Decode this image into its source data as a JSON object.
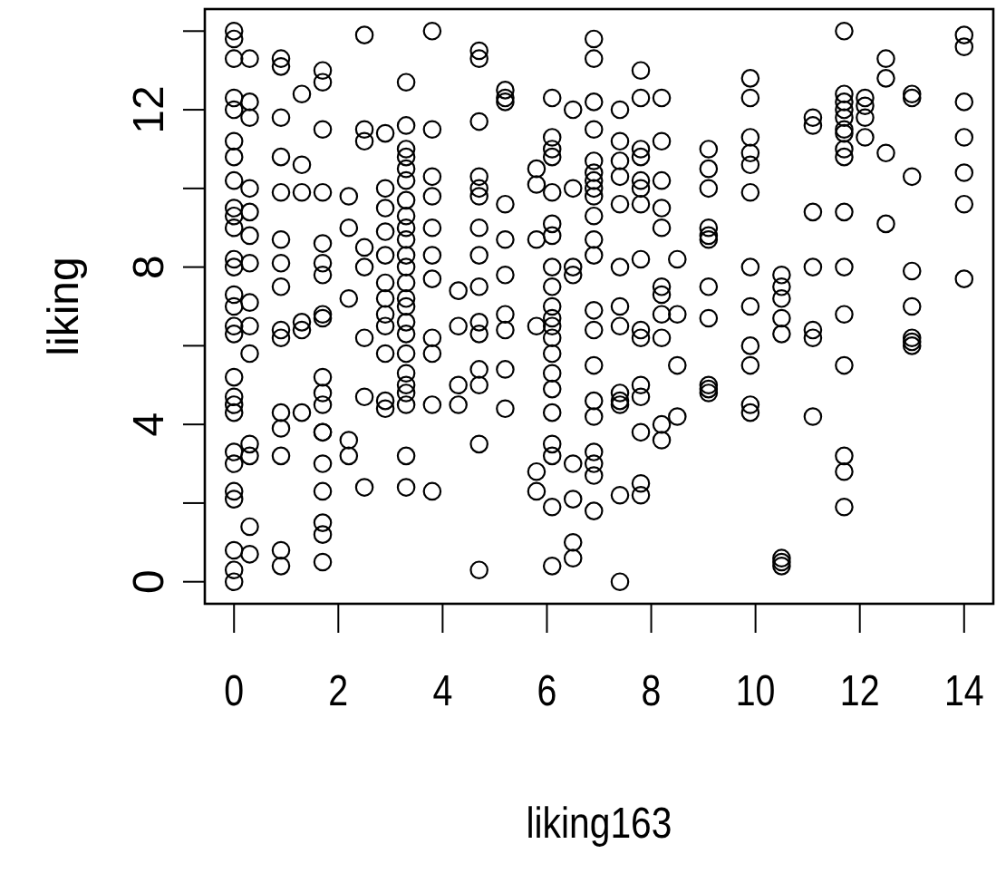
{
  "chart_data": {
    "type": "scatter",
    "xlabel": "liking163",
    "ylabel": "liking",
    "marker": "circle",
    "grid": false,
    "xlim": [
      -0.56,
      14.56
    ],
    "ylim": [
      -0.56,
      14.56
    ],
    "xticks": [
      0,
      2,
      4,
      6,
      8,
      10,
      12,
      14
    ],
    "yticks": [
      0,
      {
        "value": 2,
        "label": null
      },
      4,
      {
        "value": 6,
        "label": null
      },
      8,
      {
        "value": 10,
        "label": null
      },
      12,
      {
        "value": 14,
        "label": null
      }
    ],
    "series": [
      {
        "color": "#000000",
        "x": [
          0,
          0,
          0,
          0,
          0,
          0,
          0,
          0,
          0,
          0,
          0,
          0,
          0,
          0,
          0,
          0,
          0,
          0,
          0,
          0,
          0,
          0,
          0,
          0,
          0,
          0,
          0,
          0,
          0.3,
          0.3,
          0.3,
          0.3,
          0.3,
          0.3,
          0.3,
          0.3,
          0.3,
          0.3,
          0.3,
          0.3,
          0.3,
          0.3,
          0.9,
          0.9,
          0.9,
          0.9,
          0.9,
          0.9,
          0.9,
          0.9,
          0.9,
          0.9,
          0.9,
          0.9,
          0.9,
          0.9,
          0.9,
          1.3,
          1.3,
          1.3,
          1.3,
          1.3,
          1.3,
          1.7,
          1.7,
          1.7,
          1.7,
          1.7,
          1.7,
          1.7,
          1.7,
          1.7,
          1.7,
          1.7,
          1.7,
          1.7,
          1.7,
          1.7,
          1.7,
          1.7,
          1.7,
          1.7,
          2.2,
          2.2,
          2.2,
          2.2,
          2.2,
          2.5,
          2.5,
          2.5,
          2.5,
          2.5,
          2.5,
          2.5,
          2.5,
          2.9,
          2.9,
          2.9,
          2.9,
          2.9,
          2.9,
          2.9,
          2.9,
          2.9,
          2.9,
          2.9,
          2.9,
          3.3,
          3.3,
          3.3,
          3.3,
          3.3,
          3.3,
          3.3,
          3.3,
          3.3,
          3.3,
          3.3,
          3.3,
          3.3,
          3.3,
          3.3,
          3.3,
          3.3,
          3.3,
          3.3,
          3.3,
          3.3,
          3.3,
          3.3,
          3.3,
          3.8,
          3.8,
          3.8,
          3.8,
          3.8,
          3.8,
          3.8,
          3.8,
          3.8,
          3.8,
          3.8,
          4.3,
          4.3,
          4.3,
          4.3,
          4.7,
          4.7,
          4.7,
          4.7,
          4.7,
          4.7,
          4.7,
          4.7,
          4.7,
          4.7,
          4.7,
          4.7,
          4.7,
          4.7,
          4.7,
          5.2,
          5.2,
          5.2,
          5.2,
          5.2,
          5.2,
          5.2,
          5.2,
          5.2,
          5.2,
          5.8,
          5.8,
          5.8,
          5.8,
          5.8,
          5.8,
          6.1,
          6.1,
          6.1,
          6.1,
          6.1,
          6.1,
          6.1,
          6.1,
          6.1,
          6.1,
          6.1,
          6.1,
          6.1,
          6.1,
          6.1,
          6.1,
          6.1,
          6.1,
          6.1,
          6.1,
          6.1,
          6.5,
          6.5,
          6.5,
          6.5,
          6.5,
          6.5,
          6.5,
          6.5,
          6.9,
          6.9,
          6.9,
          6.9,
          6.9,
          6.9,
          6.9,
          6.9,
          6.9,
          6.9,
          6.9,
          6.9,
          6.9,
          6.9,
          6.9,
          6.9,
          6.9,
          6.9,
          6.9,
          6.9,
          6.9,
          7.4,
          7.4,
          7.4,
          7.4,
          7.4,
          7.4,
          7.4,
          7.4,
          7.4,
          7.4,
          7.4,
          7.4,
          7.4,
          7.8,
          7.8,
          7.8,
          7.8,
          7.8,
          7.8,
          7.8,
          7.8,
          7.8,
          7.8,
          7.8,
          7.8,
          7.8,
          7.8,
          7.8,
          8.2,
          8.2,
          8.2,
          8.2,
          8.2,
          8.2,
          8.2,
          8.2,
          8.2,
          8.2,
          8.2,
          8.5,
          8.5,
          8.5,
          8.5,
          9.1,
          9.1,
          9.1,
          9.1,
          9.1,
          9.1,
          9.1,
          9.1,
          9.1,
          9.1,
          9.1,
          9.9,
          9.9,
          9.9,
          9.9,
          9.9,
          9.9,
          9.9,
          9.9,
          9.9,
          9.9,
          9.9,
          9.9,
          10.5,
          10.5,
          10.5,
          10.5,
          10.5,
          10.5,
          10.5,
          10.5,
          11.1,
          11.1,
          11.1,
          11.1,
          11.1,
          11.1,
          11.1,
          11.7,
          11.7,
          11.7,
          11.7,
          11.7,
          11.7,
          11.7,
          11.7,
          11.7,
          11.7,
          11.7,
          11.7,
          11.7,
          11.7,
          11.7,
          11.7,
          12.1,
          12.1,
          12.1,
          12.1,
          12.5,
          12.5,
          12.5,
          12.5,
          13,
          13,
          13,
          13,
          13,
          13,
          13,
          13,
          14,
          14,
          14,
          14,
          14,
          14,
          14
        ],
        "values": [
          14,
          13.8,
          13.3,
          12.3,
          12,
          11.2,
          10.8,
          10.2,
          9.5,
          9.3,
          9,
          8.2,
          8,
          7.3,
          7,
          6.5,
          6.3,
          5.2,
          4.7,
          4.5,
          4.3,
          3.3,
          3,
          2.3,
          2.1,
          0.8,
          0.3,
          0,
          13.3,
          12.2,
          11.8,
          10,
          9.4,
          8.8,
          8.1,
          7.1,
          6.5,
          5.8,
          3.5,
          3.2,
          1.4,
          0.7,
          13.3,
          13.1,
          11.8,
          10.8,
          9.9,
          8.7,
          8.1,
          7.5,
          6.4,
          6.2,
          4.3,
          3.9,
          3.2,
          0.8,
          0.4,
          12.4,
          10.6,
          9.9,
          6.6,
          6.4,
          4.3,
          13,
          12.7,
          11.5,
          9.9,
          8.6,
          8.1,
          7.8,
          6.8,
          6.7,
          5.2,
          4.8,
          4.5,
          3.8,
          3.8,
          3,
          2.3,
          1.5,
          1.2,
          0.5,
          9.8,
          9,
          7.2,
          3.6,
          3.2,
          13.9,
          11.5,
          11.2,
          8.5,
          8,
          6.2,
          4.7,
          2.4,
          11.4,
          10,
          9.5,
          8.9,
          8.3,
          7.6,
          7.2,
          6.8,
          6.5,
          5.8,
          4.6,
          4.4,
          12.7,
          11.6,
          11,
          10.8,
          10.5,
          10.2,
          9.7,
          9.3,
          9,
          8.7,
          8.3,
          8,
          7.6,
          7.2,
          7,
          6.6,
          6.3,
          5.8,
          5.3,
          5,
          4.8,
          4.5,
          3.2,
          2.4,
          14,
          11.5,
          10.3,
          9.8,
          9,
          8.3,
          7.7,
          6.2,
          5.8,
          4.5,
          2.3,
          7.4,
          6.5,
          5,
          4.5,
          13.5,
          13.3,
          11.7,
          10.3,
          10,
          9.8,
          9,
          8.3,
          7.5,
          6.6,
          6.3,
          5.4,
          5,
          3.5,
          0.3,
          12.5,
          12.3,
          12.2,
          9.6,
          8.7,
          7.8,
          6.8,
          6.4,
          5.4,
          4.4,
          10.5,
          10.1,
          8.7,
          6.5,
          2.8,
          2.3,
          12.3,
          11.3,
          11,
          10.8,
          9.9,
          9.1,
          8.8,
          8,
          7.5,
          7,
          6.7,
          6.5,
          6.2,
          5.8,
          5.3,
          4.9,
          4.3,
          3.5,
          3.2,
          1.9,
          0.4,
          12,
          10,
          8,
          7.8,
          3,
          2.1,
          1,
          0.6,
          13.8,
          13.3,
          12.2,
          11.5,
          10.7,
          10.4,
          10.2,
          10,
          9.8,
          9.3,
          8.7,
          8.3,
          6.9,
          6.4,
          5.5,
          4.6,
          4.2,
          3.3,
          3,
          2.7,
          1.8,
          12,
          11.2,
          10.7,
          10.3,
          9.6,
          8,
          7,
          6.5,
          4.8,
          4.6,
          4.5,
          2.2,
          0,
          13,
          12.3,
          11,
          10.8,
          10.2,
          10,
          9.6,
          8.2,
          6.4,
          6.2,
          5,
          4.7,
          3.8,
          2.5,
          2.2,
          12.3,
          11.2,
          10.2,
          9.5,
          9,
          7.5,
          7.3,
          6.8,
          6.2,
          4,
          3.6,
          8.2,
          6.8,
          5.5,
          4.2,
          11,
          10.5,
          10,
          9,
          8.8,
          8.7,
          7.5,
          6.7,
          5,
          4.9,
          4.8,
          12.8,
          12.3,
          11.3,
          10.9,
          10.6,
          9.9,
          8,
          7,
          6,
          5.5,
          4.5,
          4.3,
          7.8,
          7.5,
          7.2,
          6.7,
          6.3,
          0.6,
          0.5,
          0.4,
          11.8,
          11.6,
          9.4,
          8,
          6.4,
          6.2,
          4.2,
          14,
          12.4,
          12.2,
          12,
          11.8,
          11.5,
          11.4,
          11,
          10.8,
          9.4,
          8,
          6.8,
          5.5,
          3.2,
          2.8,
          1.9,
          12.3,
          12.1,
          11.8,
          11.3,
          13.3,
          12.8,
          10.9,
          9.1,
          12.4,
          12.3,
          10.3,
          7.9,
          7,
          6.2,
          6.1,
          6,
          13.9,
          13.6,
          12.2,
          11.3,
          10.4,
          9.6,
          7.7
        ]
      }
    ]
  }
}
